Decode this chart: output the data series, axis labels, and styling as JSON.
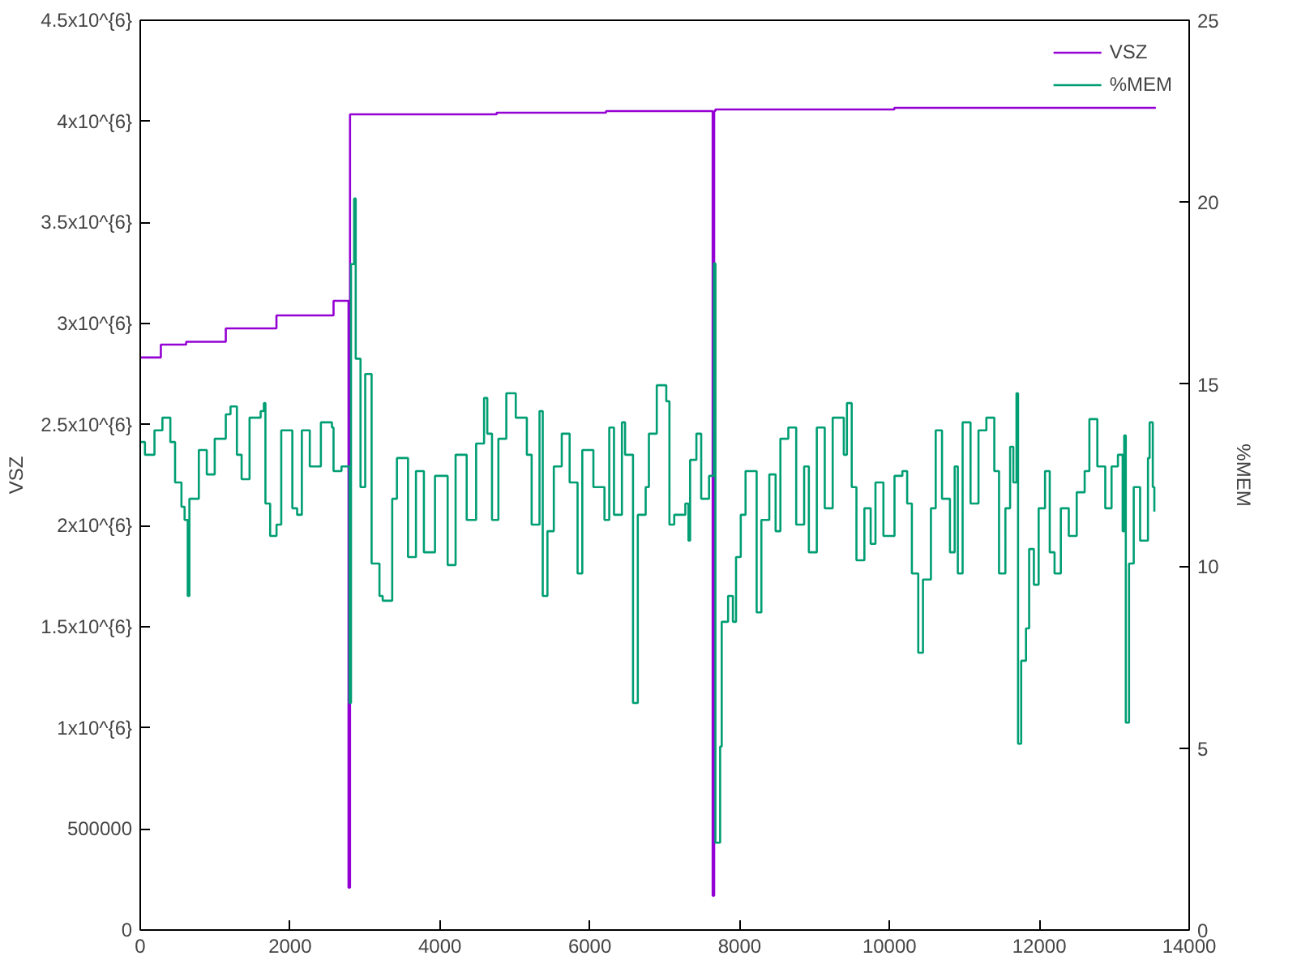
{
  "chart_data": {
    "type": "step",
    "ylabel": "VSZ",
    "y2label": "%MEM",
    "xlim": [
      0,
      14000
    ],
    "xticks": [
      0,
      2000,
      4000,
      6000,
      8000,
      10000,
      12000,
      14000
    ],
    "ylim": [
      0,
      4500000
    ],
    "yticks": [
      0,
      500000,
      {
        "value": 1000000,
        "label": "1x10^{6}"
      },
      {
        "value": 1500000,
        "label": "1.5x10^{6}"
      },
      {
        "value": 2000000,
        "label": "2x10^{6}"
      },
      {
        "value": 2500000,
        "label": "2.5x10^{6}"
      },
      {
        "value": 3000000,
        "label": "3x10^{6}"
      },
      {
        "value": 3500000,
        "label": "3.5x10^{6}"
      },
      {
        "value": 4000000,
        "label": "4x10^{6}"
      },
      {
        "value": 4500000,
        "label": "4.5x10^{6}"
      }
    ],
    "y2lim": [
      0,
      25
    ],
    "y2ticks": [
      0,
      5,
      10,
      15,
      20,
      25
    ],
    "grid": false,
    "legend": "top right",
    "series": [
      {
        "name": "VSZ",
        "color": "#9400d3",
        "x": [
          0,
          275,
          613,
          1142,
          1818,
          2580,
          2780,
          2800,
          4757,
          6217,
          7640,
          7660,
          7676,
          10065,
          13555
        ],
        "values": [
          2832000,
          2896000,
          2910000,
          2976000,
          3040000,
          3112000,
          210000,
          4035000,
          4043000,
          4051000,
          170000,
          4051000,
          4059000,
          4067000,
          4067000
        ]
      },
      {
        "name": "%MEM",
        "color": "#009e73",
        "axis": "y2",
        "x": [
          0,
          63,
          190,
          296,
          402,
          465,
          550,
          592,
          634,
          656,
          782,
          888,
          994,
          1142,
          1205,
          1290,
          1353,
          1459,
          1607,
          1650,
          1671,
          1734,
          1819,
          1882,
          2030,
          2094,
          2157,
          2263,
          2411,
          2559,
          2580,
          2686,
          2749,
          2792,
          2813,
          2855,
          2876,
          2940,
          3003,
          3088,
          3193,
          3236,
          3363,
          3426,
          3574,
          3680,
          3786,
          3934,
          4103,
          4209,
          4357,
          4483,
          4589,
          4632,
          4695,
          4780,
          4886,
          5012,
          5160,
          5224,
          5329,
          5372,
          5435,
          5520,
          5626,
          5731,
          5837,
          5900,
          6048,
          6196,
          6260,
          6323,
          6429,
          6471,
          6577,
          6641,
          6746,
          6789,
          6894,
          7021,
          7063,
          7127,
          7275,
          7317,
          7339,
          7423,
          7487,
          7592,
          7656,
          7677,
          7740,
          7761,
          7846,
          7910,
          7952,
          8015,
          8079,
          8227,
          8290,
          8396,
          8480,
          8544,
          8650,
          8755,
          8861,
          8924,
          9030,
          9136,
          9242,
          9284,
          9390,
          9432,
          9496,
          9559,
          9665,
          9749,
          9813,
          9919,
          10067,
          10172,
          10236,
          10299,
          10384,
          10447,
          10553,
          10617,
          10701,
          10807,
          10870,
          10912,
          10976,
          11082,
          11188,
          11293,
          11399,
          11462,
          11547,
          11610,
          11653,
          11695,
          11716,
          11758,
          11822,
          11864,
          11927,
          11991,
          12076,
          12139,
          12203,
          12287,
          12393,
          12499,
          12605,
          12668,
          12774,
          12880,
          12964,
          13049,
          13112,
          13133,
          13154,
          13197,
          13260,
          13345,
          13450,
          13472,
          13514,
          13535
        ],
        "values": [
          13.41,
          13.06,
          13.73,
          14.08,
          13.41,
          12.3,
          11.63,
          11.27,
          9.18,
          11.85,
          13.19,
          12.52,
          13.5,
          14.17,
          14.39,
          13.06,
          12.39,
          14.08,
          14.26,
          14.48,
          11.72,
          10.83,
          11.14,
          13.73,
          11.59,
          11.41,
          13.73,
          12.74,
          13.95,
          13.81,
          12.61,
          12.74,
          12.74,
          6.24,
          18.3,
          20.1,
          15.7,
          12.17,
          15.28,
          10.07,
          9.18,
          9.05,
          11.85,
          12.97,
          10.25,
          12.61,
          10.38,
          12.48,
          10.03,
          13.06,
          11.27,
          13.37,
          14.62,
          13.64,
          11.27,
          13.5,
          14.75,
          14.08,
          13.06,
          11.14,
          14.26,
          9.18,
          10.96,
          12.74,
          13.64,
          12.3,
          9.8,
          13.19,
          12.17,
          11.27,
          13.81,
          11.41,
          13.95,
          13.06,
          6.24,
          11.41,
          12.17,
          13.64,
          14.97,
          14.53,
          11.14,
          11.41,
          11.72,
          10.7,
          12.92,
          13.64,
          11.85,
          12.48,
          18.32,
          2.4,
          5.04,
          8.47,
          9.18,
          8.47,
          10.25,
          11.41,
          12.61,
          8.73,
          11.27,
          12.52,
          10.96,
          13.5,
          13.81,
          11.14,
          12.74,
          10.38,
          13.81,
          11.59,
          14.08,
          14.08,
          13.06,
          14.48,
          12.17,
          10.16,
          11.59,
          10.61,
          12.3,
          10.83,
          12.48,
          12.61,
          11.72,
          9.8,
          7.62,
          9.63,
          11.59,
          13.73,
          11.85,
          10.38,
          12.74,
          9.8,
          13.95,
          11.72,
          13.73,
          14.08,
          12.61,
          9.8,
          11.59,
          13.28,
          12.3,
          14.75,
          5.12,
          7.4,
          8.29,
          10.47,
          9.49,
          11.59,
          12.61,
          10.38,
          9.8,
          11.59,
          10.83,
          12.03,
          12.61,
          14.04,
          12.74,
          11.59,
          12.74,
          13.06,
          10.96,
          13.59,
          5.7,
          10.07,
          12.17,
          10.7,
          12.97,
          13.95,
          12.17,
          11.5
        ]
      }
    ]
  }
}
